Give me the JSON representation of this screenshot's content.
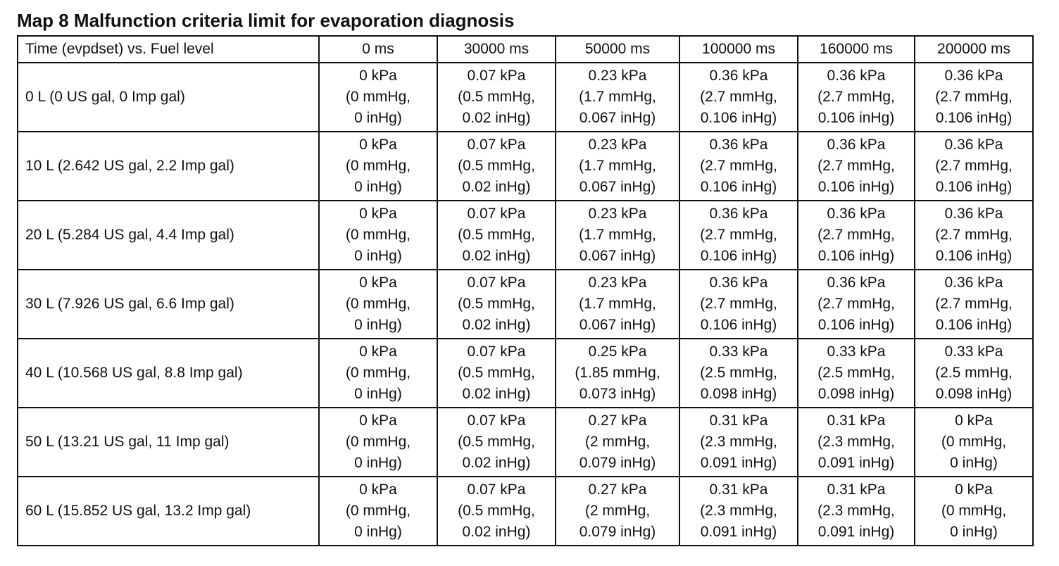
{
  "title": "Map 8 Malfunction criteria limit for evaporation diagnosis",
  "table": {
    "corner_label": "Time (evpdset) vs. Fuel level",
    "columns": [
      "0 ms",
      "30000 ms",
      "50000 ms",
      "100000 ms",
      "160000 ms",
      "200000 ms"
    ],
    "rows": [
      {
        "label": "0 L (0 US gal, 0 Imp gal)",
        "cells": [
          [
            "0 kPa",
            "(0 mmHg,",
            "0 inHg)"
          ],
          [
            "0.07 kPa",
            "(0.5 mmHg,",
            "0.02 inHg)"
          ],
          [
            "0.23 kPa",
            "(1.7 mmHg,",
            "0.067 inHg)"
          ],
          [
            "0.36 kPa",
            "(2.7 mmHg,",
            "0.106 inHg)"
          ],
          [
            "0.36 kPa",
            "(2.7 mmHg,",
            "0.106 inHg)"
          ],
          [
            "0.36 kPa",
            "(2.7 mmHg,",
            "0.106 inHg)"
          ]
        ]
      },
      {
        "label": "10 L (2.642 US gal, 2.2 Imp gal)",
        "cells": [
          [
            "0 kPa",
            "(0 mmHg,",
            "0 inHg)"
          ],
          [
            "0.07 kPa",
            "(0.5 mmHg,",
            "0.02 inHg)"
          ],
          [
            "0.23 kPa",
            "(1.7 mmHg,",
            "0.067 inHg)"
          ],
          [
            "0.36 kPa",
            "(2.7 mmHg,",
            "0.106 inHg)"
          ],
          [
            "0.36 kPa",
            "(2.7 mmHg,",
            "0.106 inHg)"
          ],
          [
            "0.36 kPa",
            "(2.7 mmHg,",
            "0.106 inHg)"
          ]
        ]
      },
      {
        "label": "20 L (5.284 US gal, 4.4 Imp gal)",
        "cells": [
          [
            "0 kPa",
            "(0 mmHg,",
            "0 inHg)"
          ],
          [
            "0.07 kPa",
            "(0.5 mmHg,",
            "0.02 inHg)"
          ],
          [
            "0.23 kPa",
            "(1.7 mmHg,",
            "0.067 inHg)"
          ],
          [
            "0.36 kPa",
            "(2.7 mmHg,",
            "0.106 inHg)"
          ],
          [
            "0.36 kPa",
            "(2.7 mmHg,",
            "0.106 inHg)"
          ],
          [
            "0.36 kPa",
            "(2.7 mmHg,",
            "0.106 inHg)"
          ]
        ]
      },
      {
        "label": "30 L (7.926 US gal, 6.6 Imp gal)",
        "cells": [
          [
            "0 kPa",
            "(0 mmHg,",
            "0 inHg)"
          ],
          [
            "0.07 kPa",
            "(0.5 mmHg,",
            "0.02 inHg)"
          ],
          [
            "0.23 kPa",
            "(1.7 mmHg,",
            "0.067 inHg)"
          ],
          [
            "0.36 kPa",
            "(2.7 mmHg,",
            "0.106 inHg)"
          ],
          [
            "0.36 kPa",
            "(2.7 mmHg,",
            "0.106 inHg)"
          ],
          [
            "0.36 kPa",
            "(2.7 mmHg,",
            "0.106 inHg)"
          ]
        ]
      },
      {
        "label": "40 L (10.568 US gal, 8.8 Imp gal)",
        "cells": [
          [
            "0 kPa",
            "(0 mmHg,",
            "0 inHg)"
          ],
          [
            "0.07 kPa",
            "(0.5 mmHg,",
            "0.02 inHg)"
          ],
          [
            "0.25 kPa",
            "(1.85 mmHg,",
            "0.073 inHg)"
          ],
          [
            "0.33 kPa",
            "(2.5 mmHg,",
            "0.098 inHg)"
          ],
          [
            "0.33 kPa",
            "(2.5 mmHg,",
            "0.098 inHg)"
          ],
          [
            "0.33 kPa",
            "(2.5 mmHg,",
            "0.098 inHg)"
          ]
        ]
      },
      {
        "label": "50 L (13.21 US gal, 11 Imp gal)",
        "cells": [
          [
            "0 kPa",
            "(0 mmHg,",
            "0 inHg)"
          ],
          [
            "0.07 kPa",
            "(0.5 mmHg,",
            "0.02 inHg)"
          ],
          [
            "0.27 kPa",
            "(2 mmHg,",
            "0.079 inHg)"
          ],
          [
            "0.31 kPa",
            "(2.3 mmHg,",
            "0.091 inHg)"
          ],
          [
            "0.31 kPa",
            "(2.3 mmHg,",
            "0.091 inHg)"
          ],
          [
            "0 kPa",
            "(0 mmHg,",
            "0 inHg)"
          ]
        ]
      },
      {
        "label": "60 L (15.852 US gal, 13.2 Imp gal)",
        "cells": [
          [
            "0 kPa",
            "(0 mmHg,",
            "0 inHg)"
          ],
          [
            "0.07 kPa",
            "(0.5 mmHg,",
            "0.02 inHg)"
          ],
          [
            "0.27 kPa",
            "(2 mmHg,",
            "0.079 inHg)"
          ],
          [
            "0.31 kPa",
            "(2.3 mmHg,",
            "0.091 inHg)"
          ],
          [
            "0.31 kPa",
            "(2.3 mmHg,",
            "0.091 inHg)"
          ],
          [
            "0 kPa",
            "(0 mmHg,",
            "0 inHg)"
          ]
        ]
      }
    ]
  }
}
